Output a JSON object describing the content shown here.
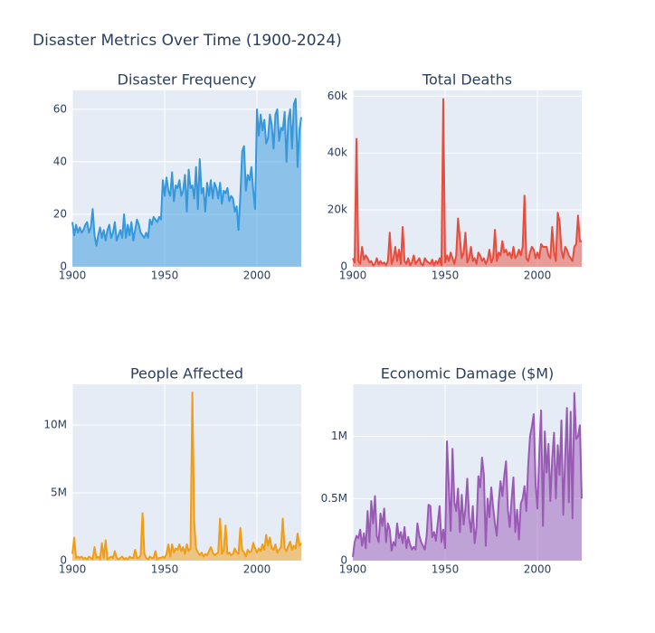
{
  "title": "Disaster Metrics Over Time (1900-2024)",
  "chart_data": [
    {
      "type": "area",
      "title": "Disaster Frequency",
      "color": "#3498db",
      "grid": true,
      "xlim": [
        1900,
        2024
      ],
      "xticks": [
        1900,
        1950,
        2000
      ],
      "ylim": [
        0,
        67.2
      ],
      "yticks": [
        0,
        20,
        40,
        60
      ],
      "x": [
        1900,
        1901,
        1902,
        1903,
        1904,
        1905,
        1906,
        1907,
        1908,
        1909,
        1910,
        1911,
        1912,
        1913,
        1914,
        1915,
        1916,
        1917,
        1918,
        1919,
        1920,
        1921,
        1922,
        1923,
        1924,
        1925,
        1926,
        1927,
        1928,
        1929,
        1930,
        1931,
        1932,
        1933,
        1934,
        1935,
        1936,
        1937,
        1938,
        1939,
        1940,
        1941,
        1942,
        1943,
        1944,
        1945,
        1946,
        1947,
        1948,
        1949,
        1950,
        1951,
        1952,
        1953,
        1954,
        1955,
        1956,
        1957,
        1958,
        1959,
        1960,
        1961,
        1962,
        1963,
        1964,
        1965,
        1966,
        1967,
        1968,
        1969,
        1970,
        1971,
        1972,
        1973,
        1974,
        1975,
        1976,
        1977,
        1978,
        1979,
        1980,
        1981,
        1982,
        1983,
        1984,
        1985,
        1986,
        1987,
        1988,
        1989,
        1990,
        1991,
        1992,
        1993,
        1994,
        1995,
        1996,
        1997,
        1998,
        1999,
        2000,
        2001,
        2002,
        2003,
        2004,
        2005,
        2006,
        2007,
        2008,
        2009,
        2010,
        2011,
        2012,
        2013,
        2014,
        2015,
        2016,
        2017,
        2018,
        2019,
        2020,
        2021,
        2022,
        2023,
        2024
      ],
      "values": [
        17,
        12,
        16,
        13,
        15,
        13,
        14,
        16,
        17,
        13,
        15,
        22,
        12,
        8,
        12,
        15,
        11,
        14,
        10,
        14,
        16,
        11,
        13,
        17,
        10,
        12,
        14,
        11,
        20,
        11,
        16,
        12,
        17,
        10,
        14,
        18,
        16,
        13,
        12,
        11,
        13,
        11,
        18,
        16,
        19,
        18,
        17,
        19,
        18,
        33,
        27,
        34,
        29,
        27,
        36,
        25,
        31,
        30,
        33,
        27,
        29,
        35,
        21,
        37,
        30,
        31,
        26,
        38,
        22,
        41,
        28,
        30,
        21,
        32,
        27,
        33,
        26,
        32,
        30,
        26,
        32,
        24,
        29,
        28,
        30,
        25,
        27,
        26,
        21,
        23,
        14,
        27,
        44,
        46,
        29,
        35,
        33,
        38,
        29,
        22,
        60,
        50,
        58,
        52,
        56,
        47,
        49,
        58,
        54,
        45,
        58,
        60,
        48,
        53,
        52,
        59,
        40,
        56,
        60,
        45,
        62,
        64,
        38,
        52,
        57
      ]
    },
    {
      "type": "area",
      "title": "Total Deaths",
      "color": "#e74c3c",
      "grid": true,
      "xlim": [
        1900,
        2024
      ],
      "xticks": [
        1900,
        1950,
        2000
      ],
      "ylim": [
        0,
        62000
      ],
      "yticks": [
        0,
        {
          "value": 20000,
          "label": "20k"
        },
        {
          "value": 40000,
          "label": "40k"
        },
        {
          "value": 60000,
          "label": "60k"
        }
      ],
      "x": [
        1900,
        1901,
        1902,
        1903,
        1904,
        1905,
        1906,
        1907,
        1908,
        1909,
        1910,
        1911,
        1912,
        1913,
        1914,
        1915,
        1916,
        1917,
        1918,
        1919,
        1920,
        1921,
        1922,
        1923,
        1924,
        1925,
        1926,
        1927,
        1928,
        1929,
        1930,
        1931,
        1932,
        1933,
        1934,
        1935,
        1936,
        1937,
        1938,
        1939,
        1940,
        1941,
        1942,
        1943,
        1944,
        1945,
        1946,
        1947,
        1948,
        1949,
        1950,
        1951,
        1952,
        1953,
        1954,
        1955,
        1956,
        1957,
        1958,
        1959,
        1960,
        1961,
        1962,
        1963,
        1964,
        1965,
        1966,
        1967,
        1968,
        1969,
        1970,
        1971,
        1972,
        1973,
        1974,
        1975,
        1976,
        1977,
        1978,
        1979,
        1980,
        1981,
        1982,
        1983,
        1984,
        1985,
        1986,
        1987,
        1988,
        1989,
        1990,
        1991,
        1992,
        1993,
        1994,
        1995,
        1996,
        1997,
        1998,
        1999,
        2000,
        2001,
        2002,
        2003,
        2004,
        2005,
        2006,
        2007,
        2008,
        2009,
        2010,
        2011,
        2012,
        2013,
        2014,
        2015,
        2016,
        2017,
        2018,
        2019,
        2020,
        2021,
        2022,
        2023,
        2024
      ],
      "values": [
        3000,
        1500,
        45000,
        2000,
        1000,
        7000,
        2500,
        4000,
        3000,
        1500,
        2000,
        500,
        1000,
        3000,
        800,
        2000,
        1000,
        1500,
        500,
        2000,
        12000,
        1000,
        3000,
        7000,
        2000,
        6000,
        1000,
        14000,
        2000,
        1000,
        3000,
        500,
        1500,
        4000,
        1000,
        2000,
        3000,
        1000,
        500,
        3000,
        2000,
        1500,
        1000,
        2500,
        500,
        2000,
        1000,
        3000,
        500,
        59000,
        1500,
        4000,
        2000,
        5000,
        3000,
        1000,
        4000,
        17000,
        10000,
        3000,
        5000,
        12000,
        1500,
        3000,
        7000,
        2000,
        3000,
        1000,
        5000,
        4000,
        2000,
        3000,
        1000,
        2500,
        6000,
        1500,
        3000,
        13000,
        2000,
        5000,
        4000,
        9000,
        5000,
        6000,
        4000,
        5000,
        3000,
        7000,
        3000,
        4000,
        6000,
        4000,
        7000,
        25000,
        3000,
        2000,
        5000,
        7000,
        6000,
        3000,
        5000,
        3000,
        8000,
        7000,
        7000,
        7000,
        4000,
        3000,
        14000,
        5000,
        2000,
        19000,
        16000,
        6000,
        3000,
        7000,
        6000,
        4000,
        3000,
        2000,
        7000,
        8000,
        18000,
        9000,
        9000
      ]
    },
    {
      "type": "area",
      "title": "People Affected",
      "color": "#f39c12",
      "grid": true,
      "xlim": [
        1900,
        2024
      ],
      "xticks": [
        1900,
        1950,
        2000
      ],
      "ylim": [
        0,
        13000000
      ],
      "yticks": [
        0,
        {
          "value": 5000000,
          "label": "5M"
        },
        {
          "value": 10000000,
          "label": "10M"
        }
      ],
      "x": [
        1900,
        1901,
        1902,
        1903,
        1904,
        1905,
        1906,
        1907,
        1908,
        1909,
        1910,
        1911,
        1912,
        1913,
        1914,
        1915,
        1916,
        1917,
        1918,
        1919,
        1920,
        1921,
        1922,
        1923,
        1924,
        1925,
        1926,
        1927,
        1928,
        1929,
        1930,
        1931,
        1932,
        1933,
        1934,
        1935,
        1936,
        1937,
        1938,
        1939,
        1940,
        1941,
        1942,
        1943,
        1944,
        1945,
        1946,
        1947,
        1948,
        1949,
        1950,
        1951,
        1952,
        1953,
        1954,
        1955,
        1956,
        1957,
        1958,
        1959,
        1960,
        1961,
        1962,
        1963,
        1964,
        1965,
        1966,
        1967,
        1968,
        1969,
        1970,
        1971,
        1972,
        1973,
        1974,
        1975,
        1976,
        1977,
        1978,
        1979,
        1980,
        1981,
        1982,
        1983,
        1984,
        1985,
        1986,
        1987,
        1988,
        1989,
        1990,
        1991,
        1992,
        1993,
        1994,
        1995,
        1996,
        1997,
        1998,
        1999,
        2000,
        2001,
        2002,
        2003,
        2004,
        2005,
        2006,
        2007,
        2008,
        2009,
        2010,
        2011,
        2012,
        2013,
        2014,
        2015,
        2016,
        2017,
        2018,
        2019,
        2020,
        2021,
        2022,
        2023,
        2024
      ],
      "values": [
        500000,
        1700000,
        200000,
        300000,
        200000,
        300000,
        150000,
        200000,
        100000,
        300000,
        200000,
        100000,
        1000000,
        200000,
        300000,
        100000,
        1300000,
        200000,
        1500000,
        100000,
        200000,
        300000,
        200000,
        700000,
        200000,
        100000,
        200000,
        300000,
        100000,
        200000,
        100000,
        300000,
        200000,
        200000,
        800000,
        200000,
        200000,
        400000,
        3500000,
        500000,
        200000,
        100000,
        300000,
        200000,
        200000,
        700000,
        100000,
        200000,
        200000,
        300000,
        200000,
        500000,
        1200000,
        300000,
        1200000,
        600000,
        900000,
        800000,
        1200000,
        700000,
        1000000,
        500000,
        1200000,
        700000,
        900000,
        12400000,
        2800000,
        900000,
        600000,
        400000,
        600000,
        300000,
        500000,
        400000,
        700000,
        1000000,
        600000,
        400000,
        500000,
        600000,
        3100000,
        500000,
        800000,
        2600000,
        500000,
        600000,
        400000,
        500000,
        900000,
        600000,
        500000,
        2400000,
        800000,
        600000,
        300000,
        800000,
        600000,
        700000,
        1300000,
        900000,
        600000,
        900000,
        700000,
        1200000,
        800000,
        1900000,
        1100000,
        1700000,
        900000,
        800000,
        1200000,
        600000,
        800000,
        1000000,
        3100000,
        900000,
        700000,
        1100000,
        1400000,
        800000,
        1100000,
        900000,
        2000000,
        1100000,
        1300000
      ]
    },
    {
      "type": "area",
      "title": "Economic Damage ($M)",
      "color": "#9b59b6",
      "grid": true,
      "xlim": [
        1900,
        2024
      ],
      "xticks": [
        1900,
        1950,
        2000
      ],
      "ylim": [
        0,
        1420000
      ],
      "yticks": [
        0,
        {
          "value": 500000,
          "label": "0.5M"
        },
        {
          "value": 1000000,
          "label": "1M"
        }
      ],
      "x": [
        1900,
        1901,
        1902,
        1903,
        1904,
        1905,
        1906,
        1907,
        1908,
        1909,
        1910,
        1911,
        1912,
        1913,
        1914,
        1915,
        1916,
        1917,
        1918,
        1919,
        1920,
        1921,
        1922,
        1923,
        1924,
        1925,
        1926,
        1927,
        1928,
        1929,
        1930,
        1931,
        1932,
        1933,
        1934,
        1935,
        1936,
        1937,
        1938,
        1939,
        1940,
        1941,
        1942,
        1943,
        1944,
        1945,
        1946,
        1947,
        1948,
        1949,
        1950,
        1951,
        1952,
        1953,
        1954,
        1955,
        1956,
        1957,
        1958,
        1959,
        1960,
        1961,
        1962,
        1963,
        1964,
        1965,
        1966,
        1967,
        1968,
        1969,
        1970,
        1971,
        1972,
        1973,
        1974,
        1975,
        1976,
        1977,
        1978,
        1979,
        1980,
        1981,
        1982,
        1983,
        1984,
        1985,
        1986,
        1987,
        1988,
        1989,
        1990,
        1991,
        1992,
        1993,
        1994,
        1995,
        1996,
        1997,
        1998,
        1999,
        2000,
        2001,
        2002,
        2003,
        2004,
        2005,
        2006,
        2007,
        2008,
        2009,
        2010,
        2011,
        2012,
        2013,
        2014,
        2015,
        2016,
        2017,
        2018,
        2019,
        2020,
        2021,
        2022,
        2023,
        2024
      ],
      "values": [
        30000,
        150000,
        200000,
        180000,
        250000,
        120000,
        220000,
        100000,
        400000,
        150000,
        480000,
        300000,
        520000,
        200000,
        150000,
        380000,
        280000,
        420000,
        150000,
        300000,
        250000,
        80000,
        150000,
        120000,
        300000,
        180000,
        230000,
        140000,
        270000,
        100000,
        190000,
        130000,
        90000,
        110000,
        90000,
        300000,
        200000,
        150000,
        120000,
        90000,
        200000,
        450000,
        440000,
        190000,
        230000,
        160000,
        300000,
        440000,
        150000,
        250000,
        100000,
        960000,
        600000,
        240000,
        900000,
        470000,
        400000,
        580000,
        230000,
        530000,
        290000,
        420000,
        660000,
        350000,
        230000,
        440000,
        140000,
        270000,
        680000,
        590000,
        830000,
        690000,
        120000,
        500000,
        350000,
        590000,
        430000,
        300000,
        200000,
        470000,
        640000,
        520000,
        680000,
        800000,
        410000,
        270000,
        490000,
        670000,
        230000,
        410000,
        170000,
        460000,
        500000,
        600000,
        400000,
        770000,
        1000000,
        1080000,
        1180000,
        620000,
        420000,
        860000,
        1210000,
        280000,
        1040000,
        710000,
        940000,
        480000,
        820000,
        1030000,
        500000,
        930000,
        690000,
        1130000,
        370000,
        820000,
        1230000,
        470000,
        1200000,
        340000,
        1350000,
        980000,
        1000000,
        1090000,
        500000
      ]
    }
  ]
}
